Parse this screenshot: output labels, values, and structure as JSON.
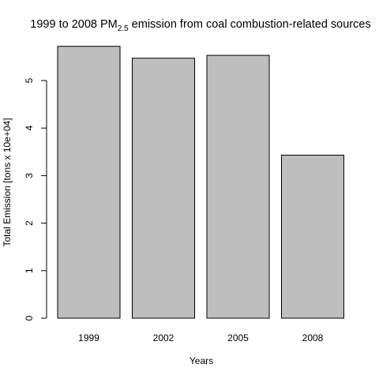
{
  "chart_data": {
    "type": "bar",
    "title": {
      "prefix": "1999 to 2008 PM",
      "subscript": "2.5",
      "suffix": " emission from coal combustion-related sources"
    },
    "xlabel": "Years",
    "ylabel": "Total Emission [tons x 10e+04]",
    "categories": [
      "1999",
      "2002",
      "2005",
      "2008"
    ],
    "values": [
      5.72,
      5.47,
      5.53,
      3.43
    ],
    "yticks": [
      "0",
      "1",
      "2",
      "3",
      "4",
      "5"
    ],
    "ylim": [
      0,
      5.9
    ],
    "bar_color": "#bebebe",
    "grid": false,
    "legend": "none"
  }
}
